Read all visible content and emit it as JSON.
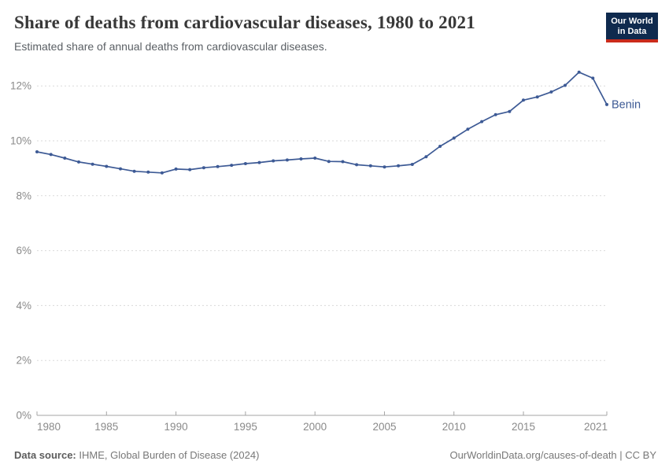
{
  "header": {
    "title": "Share of deaths from cardiovascular diseases, 1980 to 2021",
    "subtitle": "Estimated share of annual deaths from cardiovascular diseases.",
    "logo": {
      "line1": "Our World",
      "line2": "in Data",
      "bg_color": "#0f2a4e",
      "accent_color": "#ca2b1b"
    }
  },
  "chart_data": {
    "type": "line",
    "title": "Share of deaths from cardiovascular diseases, 1980 to 2021",
    "subtitle": "Estimated share of annual deaths from cardiovascular diseases.",
    "x": [
      1980,
      1981,
      1982,
      1983,
      1984,
      1985,
      1986,
      1987,
      1988,
      1989,
      1990,
      1991,
      1992,
      1993,
      1994,
      1995,
      1996,
      1997,
      1998,
      1999,
      2000,
      2001,
      2002,
      2003,
      2004,
      2005,
      2006,
      2007,
      2008,
      2009,
      2010,
      2011,
      2012,
      2013,
      2014,
      2015,
      2016,
      2017,
      2018,
      2019,
      2020,
      2021
    ],
    "series": [
      {
        "name": "Benin",
        "color": "#3d5a95",
        "values": [
          9.6,
          9.5,
          9.37,
          9.23,
          9.15,
          9.07,
          8.98,
          8.89,
          8.86,
          8.83,
          8.97,
          8.95,
          9.02,
          9.06,
          9.11,
          9.17,
          9.21,
          9.27,
          9.3,
          9.34,
          9.37,
          9.25,
          9.24,
          9.13,
          9.09,
          9.05,
          9.09,
          9.14,
          9.42,
          9.8,
          10.1,
          10.42,
          10.7,
          10.95,
          11.07,
          11.48,
          11.6,
          11.78,
          12.02,
          12.5,
          12.28,
          11.32
        ]
      }
    ],
    "xlabel": "",
    "ylabel": "",
    "xlim": [
      1980,
      2021
    ],
    "ylim": [
      0,
      12
    ],
    "yticks": [
      0,
      2,
      4,
      6,
      8,
      10,
      12
    ],
    "ytick_suffix": "%",
    "xticks": [
      1980,
      1985,
      1990,
      1995,
      2000,
      2005,
      2010,
      2015,
      2021
    ],
    "grid": "horizontal-dashed",
    "legend_position": "end-of-line-label",
    "marker": "circle"
  },
  "colors": {
    "line": "#3d5a95",
    "gridline": "#dadada",
    "axis": "#a5a5a5",
    "tick_text": "#8a8a8a"
  },
  "footer": {
    "source_label": "Data source:",
    "source_text": " IHME, Global Burden of Disease (2024)",
    "credit": "OurWorldinData.org/causes-of-death | CC BY"
  }
}
